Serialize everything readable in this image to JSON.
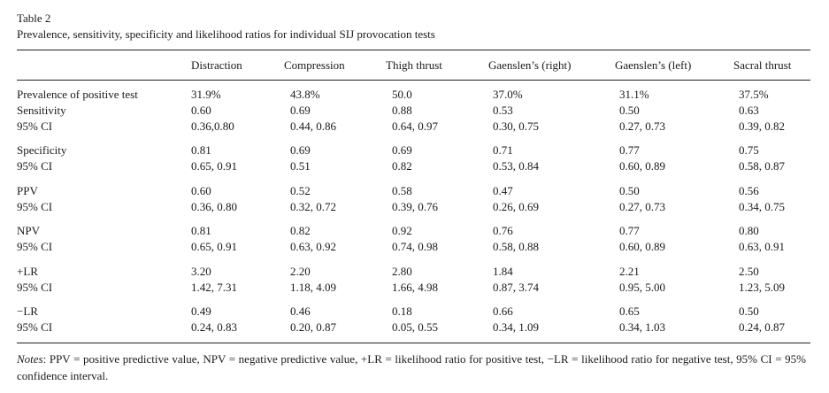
{
  "caption": {
    "label": "Table 2",
    "title": "Prevalence, sensitivity, specificity and likelihood ratios for individual SIJ provocation tests"
  },
  "columns": [
    "Distraction",
    "Compression",
    "Thigh thrust",
    "Gaenslen’s (right)",
    "Gaenslen’s (left)",
    "Sacral thrust"
  ],
  "rows": [
    {
      "label": "Prevalence of positive test",
      "values": [
        "31.9%",
        "43.8%",
        "50.0",
        "37.0%",
        "31.1%",
        "37.5%"
      ]
    },
    {
      "label": "Sensitivity",
      "values": [
        "0.60",
        "0.69",
        "0.88",
        "0.53",
        "0.50",
        "0.63"
      ]
    },
    {
      "label": "95% CI",
      "values": [
        "0.36,0.80",
        "0.44, 0.86",
        "0.64, 0.97",
        "0.30, 0.75",
        "0.27, 0.73",
        "0.39, 0.82"
      ]
    },
    {
      "label": "Specificity",
      "values": [
        "0.81",
        "0.69",
        "0.69",
        "0.71",
        "0.77",
        "0.75"
      ]
    },
    {
      "label": "95% CI",
      "values": [
        "0.65, 0.91",
        "0.51",
        "0.82",
        "0.53, 0.84",
        "0.60, 0.89",
        "0.58, 0.87"
      ]
    },
    {
      "label": "PPV",
      "values": [
        "0.60",
        "0.52",
        "0.58",
        "0.47",
        "0.50",
        "0.56"
      ]
    },
    {
      "label": "95% CI",
      "values": [
        "0.36, 0.80",
        "0.32, 0.72",
        "0.39, 0.76",
        "0.26, 0.69",
        "0.27, 0.73",
        "0.34, 0.75"
      ]
    },
    {
      "label": "NPV",
      "values": [
        "0.81",
        "0.82",
        "0.92",
        "0.76",
        "0.77",
        "0.80"
      ]
    },
    {
      "label": "95% CI",
      "values": [
        "0.65, 0.91",
        "0.63, 0.92",
        "0.74, 0.98",
        "0.58, 0.88",
        "0.60, 0.89",
        "0.63, 0.91"
      ]
    },
    {
      "label": "+LR",
      "values": [
        "3.20",
        "2.20",
        "2.80",
        "1.84",
        "2.21",
        "2.50"
      ]
    },
    {
      "label": "95% CI",
      "values": [
        "1.42, 7.31",
        "1.18, 4.09",
        "1.66, 4.98",
        "0.87, 3.74",
        "0.95, 5.00",
        "1.23, 5.09"
      ]
    },
    {
      "label": "−LR",
      "values": [
        "0.49",
        "0.46",
        "0.18",
        "0.66",
        "0.65",
        "0.50"
      ]
    },
    {
      "label": "95% CI",
      "values": [
        "0.24, 0.83",
        "0.20, 0.87",
        "0.05, 0.55",
        "0.34, 1.09",
        "0.34, 1.03",
        "0.24, 0.87"
      ]
    }
  ],
  "notes": {
    "prefix": "Notes",
    "text": ": PPV = positive predictive value, NPV = negative predictive value, +LR = likelihood ratio for positive test, −LR = likelihood ratio for negative test, 95% CI = 95% confidence interval."
  }
}
